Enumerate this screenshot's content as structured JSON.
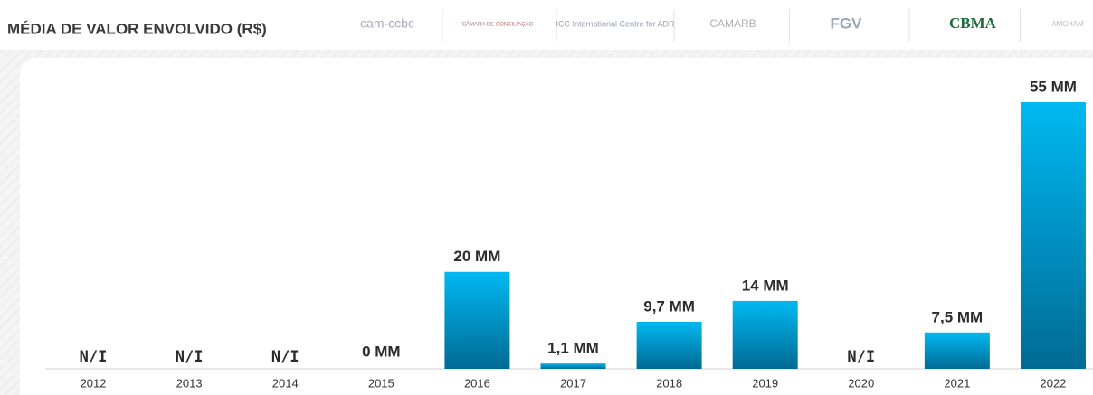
{
  "chart_data": {
    "type": "bar",
    "title": "MÉDIA DE VALOR ENVOLVIDO (R$)",
    "categories": [
      "2012",
      "2013",
      "2014",
      "2015",
      "2016",
      "2017",
      "2018",
      "2019",
      "2020",
      "2021",
      "2022"
    ],
    "values": [
      null,
      null,
      null,
      0,
      20,
      1.1,
      9.7,
      14,
      null,
      7.5,
      55
    ],
    "value_labels": [
      "N/I",
      "N/I",
      "N/I",
      "0 MM",
      "20 MM",
      "1,1 MM",
      "9,7 MM",
      "14 MM",
      "N/I",
      "7,5 MM",
      "55 MM"
    ],
    "color": "#00b4ef"
  },
  "logos": [
    "cam-ccbc",
    "CÂMARA DE CONCILIAÇÃO",
    "ICC International Centre for ADR",
    "CAMARB",
    "FGV",
    "CBMA",
    "AMCHAM"
  ]
}
